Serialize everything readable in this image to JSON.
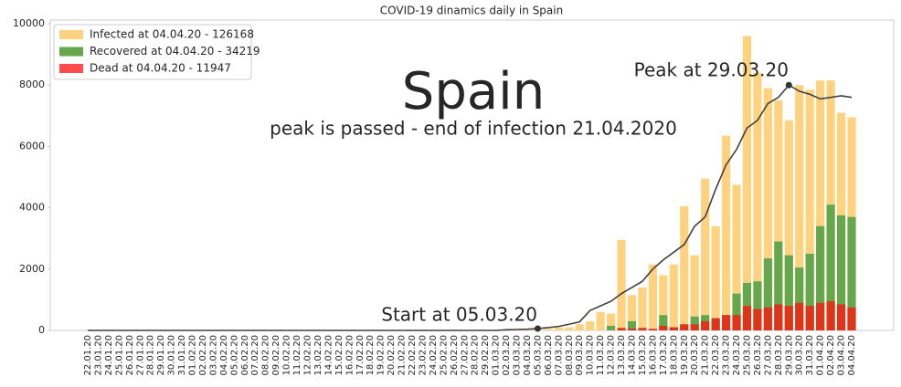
{
  "chart_data": {
    "type": "bar",
    "title": "COVID-19 dinamics daily in Spain",
    "heading": "Spain",
    "subheading": "peak is passed - end of infection 21.04.2020",
    "categories": [
      "22.01.20",
      "23.01.20",
      "24.01.20",
      "25.01.20",
      "26.01.20",
      "27.01.20",
      "28.01.20",
      "29.01.20",
      "30.01.20",
      "31.01.20",
      "01.02.20",
      "02.02.20",
      "03.02.20",
      "04.02.20",
      "05.02.20",
      "06.02.20",
      "07.02.20",
      "08.02.20",
      "09.02.20",
      "10.02.20",
      "11.02.20",
      "12.02.20",
      "13.02.20",
      "14.02.20",
      "15.02.20",
      "16.02.20",
      "17.02.20",
      "18.02.20",
      "19.02.20",
      "20.02.20",
      "21.02.20",
      "22.02.20",
      "23.02.20",
      "24.02.20",
      "25.02.20",
      "26.02.20",
      "27.02.20",
      "28.02.20",
      "29.02.20",
      "01.03.20",
      "02.03.20",
      "03.03.20",
      "04.03.20",
      "05.03.20",
      "06.03.20",
      "07.03.20",
      "08.03.20",
      "09.03.20",
      "10.03.20",
      "11.03.20",
      "12.03.20",
      "13.03.20",
      "14.03.20",
      "15.03.20",
      "16.03.20",
      "17.03.20",
      "18.03.20",
      "19.03.20",
      "20.03.20",
      "21.03.20",
      "22.03.20",
      "23.03.20",
      "24.03.20",
      "25.03.20",
      "26.03.20",
      "27.03.20",
      "28.03.20",
      "29.03.20",
      "30.03.20",
      "31.03.20",
      "01.04.20",
      "02.04.20",
      "03.04.20",
      "04.04.20"
    ],
    "series": [
      {
        "name": "Infected at 04.04.20 - 126168",
        "color": "#fed27f",
        "values": [
          0,
          0,
          0,
          0,
          0,
          0,
          0,
          0,
          0,
          0,
          0,
          0,
          0,
          0,
          0,
          0,
          0,
          0,
          0,
          0,
          0,
          0,
          0,
          0,
          0,
          0,
          0,
          0,
          0,
          0,
          0,
          0,
          0,
          0,
          0,
          0,
          0,
          0,
          0,
          0,
          10,
          15,
          20,
          30,
          50,
          100,
          100,
          200,
          300,
          600,
          550,
          2950,
          1150,
          1400,
          2150,
          1800,
          2150,
          4050,
          2450,
          4950,
          3400,
          6350,
          4750,
          9600,
          8400,
          7900,
          7500,
          6850,
          8000,
          7850,
          8150,
          8150,
          7100,
          6950
        ]
      },
      {
        "name": "Recovered at 04.04.20 - 34219",
        "color": "#67a74c",
        "values": [
          0,
          0,
          0,
          0,
          0,
          0,
          0,
          0,
          0,
          0,
          0,
          0,
          0,
          0,
          0,
          0,
          0,
          0,
          0,
          0,
          0,
          0,
          0,
          0,
          0,
          0,
          0,
          0,
          0,
          0,
          0,
          0,
          0,
          0,
          0,
          0,
          0,
          0,
          0,
          0,
          0,
          0,
          0,
          0,
          0,
          0,
          0,
          0,
          0,
          0,
          150,
          30,
          300,
          30,
          30,
          500,
          100,
          150,
          450,
          500,
          350,
          500,
          1200,
          1550,
          1600,
          2350,
          2900,
          2450,
          2050,
          2500,
          3400,
          4100,
          3750,
          3700
        ]
      },
      {
        "name": "Dead at 04.04.20 - 11947",
        "color": "#ff4b4b",
        "bar_color": "#de3419",
        "values": [
          0,
          0,
          0,
          0,
          0,
          0,
          0,
          0,
          0,
          0,
          0,
          0,
          0,
          0,
          0,
          0,
          0,
          0,
          0,
          0,
          0,
          0,
          0,
          0,
          0,
          0,
          0,
          0,
          0,
          0,
          0,
          0,
          0,
          0,
          0,
          0,
          0,
          0,
          0,
          0,
          0,
          0,
          0,
          0,
          0,
          0,
          0,
          0,
          0,
          0,
          0,
          80,
          60,
          80,
          50,
          150,
          100,
          200,
          200,
          300,
          400,
          500,
          500,
          800,
          700,
          750,
          850,
          800,
          900,
          800,
          900,
          950,
          850,
          750
        ]
      }
    ],
    "trend": {
      "color": "#404040",
      "values": [
        0,
        0,
        0,
        0,
        0,
        0,
        0,
        0,
        0,
        0,
        0,
        0,
        0,
        0,
        0,
        0,
        0,
        0,
        0,
        0,
        0,
        0,
        0,
        0,
        0,
        0,
        0,
        0,
        0,
        0,
        0,
        0,
        0,
        0,
        0,
        0,
        0,
        0,
        0,
        0,
        20,
        30,
        40,
        60,
        90,
        130,
        200,
        280,
        650,
        800,
        950,
        1200,
        1400,
        1600,
        2000,
        2300,
        2550,
        2800,
        3400,
        3700,
        4600,
        5400,
        5900,
        6600,
        6850,
        7400,
        7600,
        8000,
        7800,
        7700,
        7550,
        7600,
        7650,
        7600
      ]
    },
    "annotations": [
      {
        "text": "Peak at 29.03.20",
        "x": "29.03.20",
        "y": 8000
      },
      {
        "text": "Start at 05.03.20",
        "x": "05.03.20",
        "y": 60
      }
    ],
    "ylim": [
      0,
      10120
    ],
    "yticks": [
      0,
      2000,
      4000,
      6000,
      8000,
      10000
    ],
    "grid": false,
    "legend": "upper left"
  }
}
